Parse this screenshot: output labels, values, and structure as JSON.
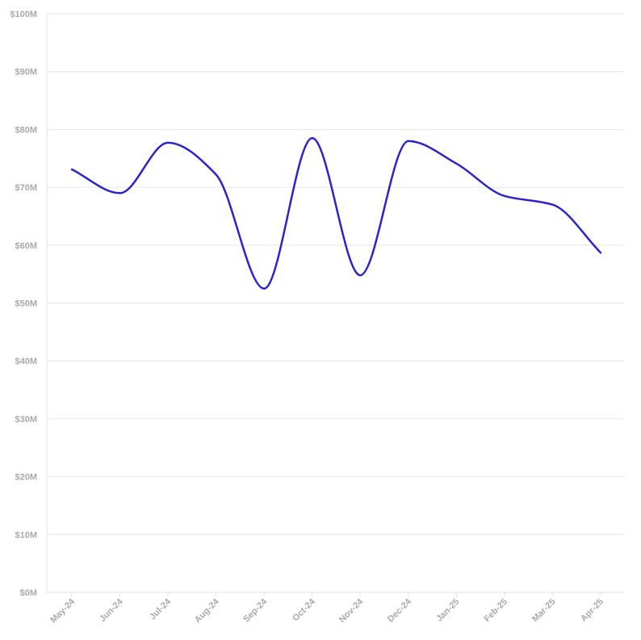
{
  "chart_data": {
    "type": "line",
    "title": "",
    "xlabel": "",
    "ylabel": "",
    "categories": [
      "May-24",
      "Jun-24",
      "Jul-24",
      "Aug-24",
      "Sep-24",
      "Oct-24",
      "Nov-24",
      "Dec-24",
      "Jan-25",
      "Feb-25",
      "Mar-25",
      "Apr-25"
    ],
    "series": [
      {
        "values": [
          73.1,
          69.0,
          77.7,
          72.2,
          52.5,
          78.5,
          54.8,
          78.0,
          74.1,
          68.5,
          67.0,
          58.7
        ],
        "color": "#2b24cc"
      }
    ],
    "ylim": [
      0,
      100
    ],
    "yticks": [
      0,
      10,
      20,
      30,
      40,
      50,
      60,
      70,
      80,
      90,
      100
    ],
    "ytick_labels": [
      "$0M",
      "$10M",
      "$20M",
      "$30M",
      "$40M",
      "$50M",
      "$60M",
      "$70M",
      "$80M",
      "$90M",
      "$100M"
    ],
    "grid": true,
    "legend": "none",
    "line_style": "smooth"
  }
}
